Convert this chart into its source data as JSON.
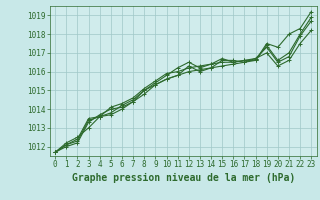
{
  "background_color": "#c8e8e8",
  "plot_bg_color": "#d0ecec",
  "grid_color": "#a0c8c8",
  "line_color": "#2d6a2d",
  "title": "Graphe pression niveau de la mer (hPa)",
  "xlim": [
    -0.5,
    23.5
  ],
  "ylim": [
    1011.5,
    1019.5
  ],
  "yticks": [
    1012,
    1013,
    1014,
    1015,
    1016,
    1017,
    1018,
    1019
  ],
  "xticks": [
    0,
    1,
    2,
    3,
    4,
    5,
    6,
    7,
    8,
    9,
    10,
    11,
    12,
    13,
    14,
    15,
    16,
    17,
    18,
    19,
    20,
    21,
    22,
    23
  ],
  "series": [
    [
      1011.7,
      1012.2,
      1012.5,
      1013.0,
      1013.6,
      1013.7,
      1014.0,
      1014.4,
      1014.8,
      1015.3,
      1015.6,
      1015.8,
      1016.3,
      1016.0,
      1016.2,
      1016.6,
      1016.6,
      1016.5,
      1016.6,
      1017.5,
      1017.3,
      1018.0,
      1018.3,
      1019.2
    ],
    [
      1011.7,
      1012.1,
      1012.4,
      1013.5,
      1013.6,
      1013.8,
      1014.2,
      1014.5,
      1015.0,
      1015.4,
      1015.8,
      1016.2,
      1016.5,
      1016.2,
      1016.4,
      1016.7,
      1016.5,
      1016.6,
      1016.6,
      1017.4,
      1016.6,
      1017.0,
      1018.0,
      1018.9
    ],
    [
      1011.7,
      1012.1,
      1012.3,
      1013.4,
      1013.6,
      1014.1,
      1014.3,
      1014.6,
      1015.1,
      1015.5,
      1015.9,
      1016.0,
      1016.2,
      1016.3,
      1016.4,
      1016.5,
      1016.5,
      1016.6,
      1016.7,
      1017.3,
      1016.5,
      1016.8,
      1017.9,
      1018.7
    ],
    [
      1011.7,
      1012.0,
      1012.2,
      1013.3,
      1013.7,
      1014.0,
      1014.1,
      1014.4,
      1015.0,
      1015.3,
      1015.6,
      1015.8,
      1016.0,
      1016.1,
      1016.2,
      1016.3,
      1016.4,
      1016.5,
      1016.7,
      1017.0,
      1016.3,
      1016.6,
      1017.5,
      1018.2
    ]
  ],
  "marker": "+",
  "marker_size": 3,
  "line_width": 0.8,
  "title_fontsize": 7,
  "tick_fontsize": 5.5
}
